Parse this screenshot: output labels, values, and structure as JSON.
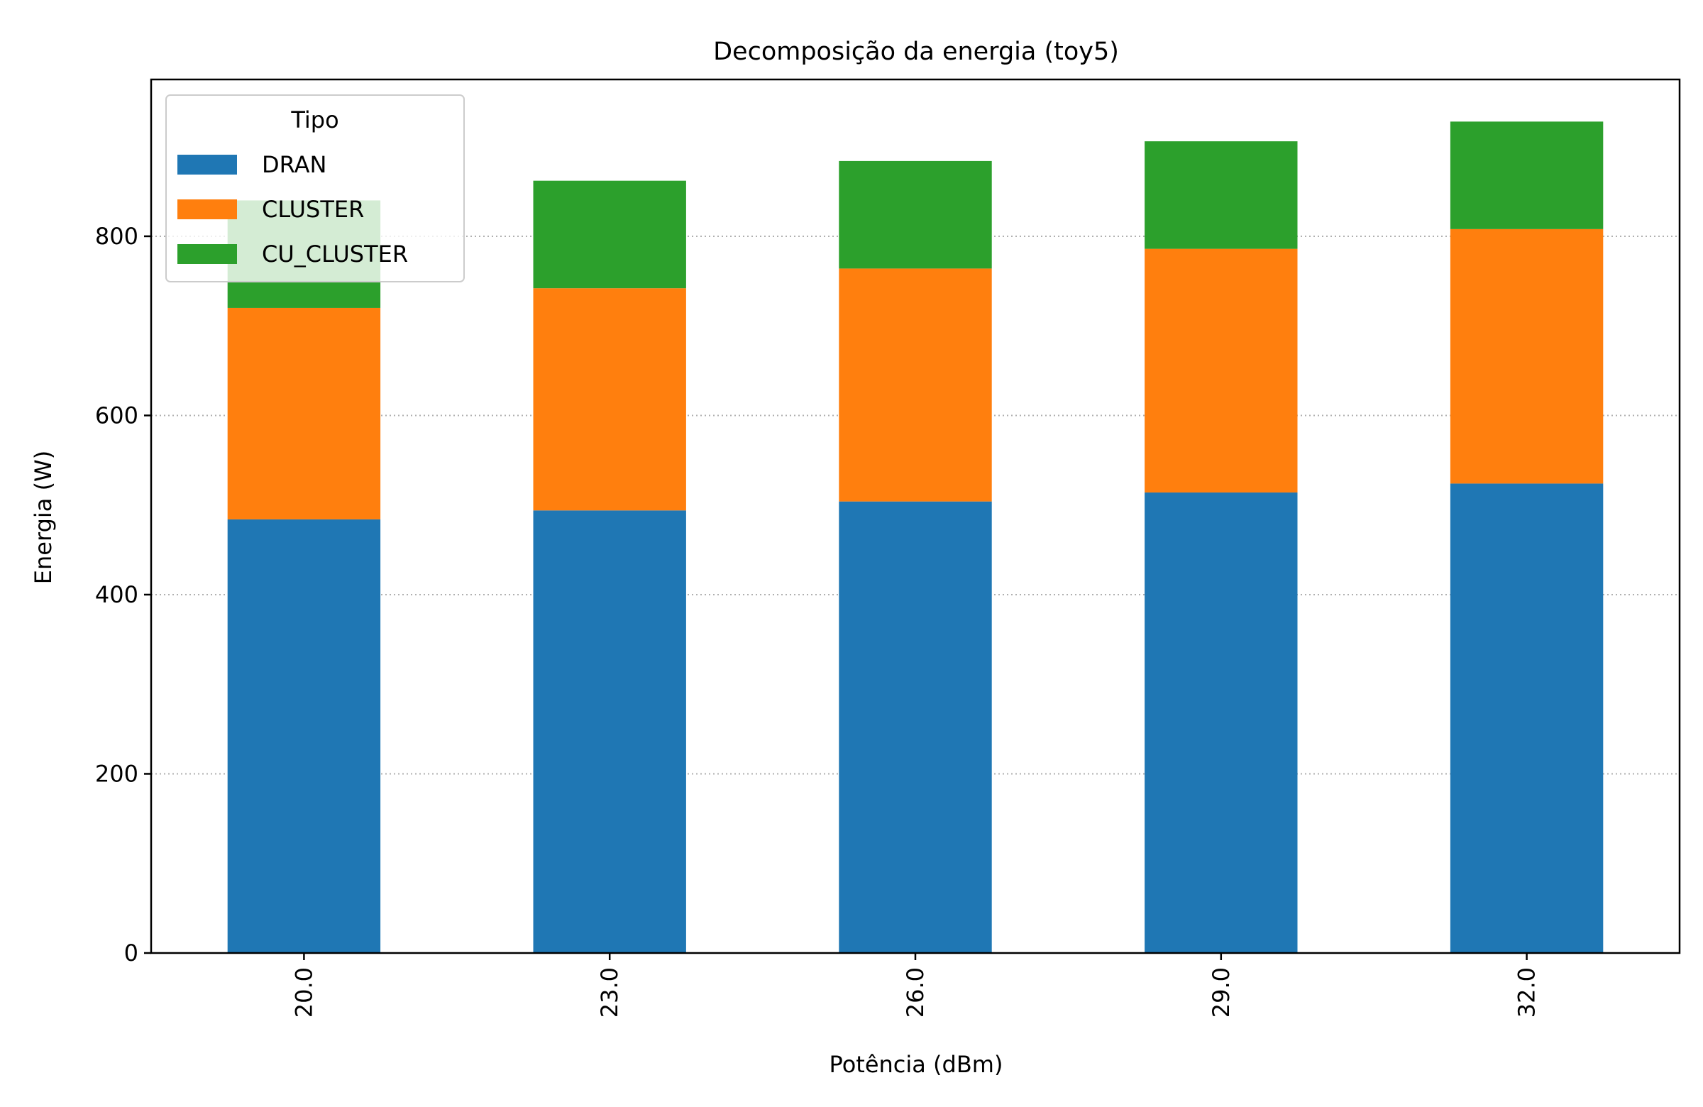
{
  "chart_data": {
    "type": "bar",
    "stacked": true,
    "title": "Decomposição da energia (toy5)",
    "xlabel": "Potência (dBm)",
    "ylabel": "Energia (W)",
    "categories": [
      "20.0",
      "23.0",
      "26.0",
      "29.0",
      "32.0"
    ],
    "series": [
      {
        "name": "DRAN",
        "color": "#1f77b4",
        "values": [
          484,
          494,
          504,
          514,
          524
        ]
      },
      {
        "name": "CLUSTER",
        "color": "#ff7f0e",
        "values": [
          236,
          248,
          260,
          272,
          284
        ]
      },
      {
        "name": "CU_CLUSTER",
        "color": "#2ca02c",
        "values": [
          120,
          120,
          120,
          120,
          120
        ]
      }
    ],
    "ylim": [
      0,
      975
    ],
    "yticks": [
      0,
      200,
      400,
      600,
      800
    ],
    "grid": "y dotted",
    "legend": {
      "title": "Tipo",
      "placement": "top-left"
    }
  }
}
